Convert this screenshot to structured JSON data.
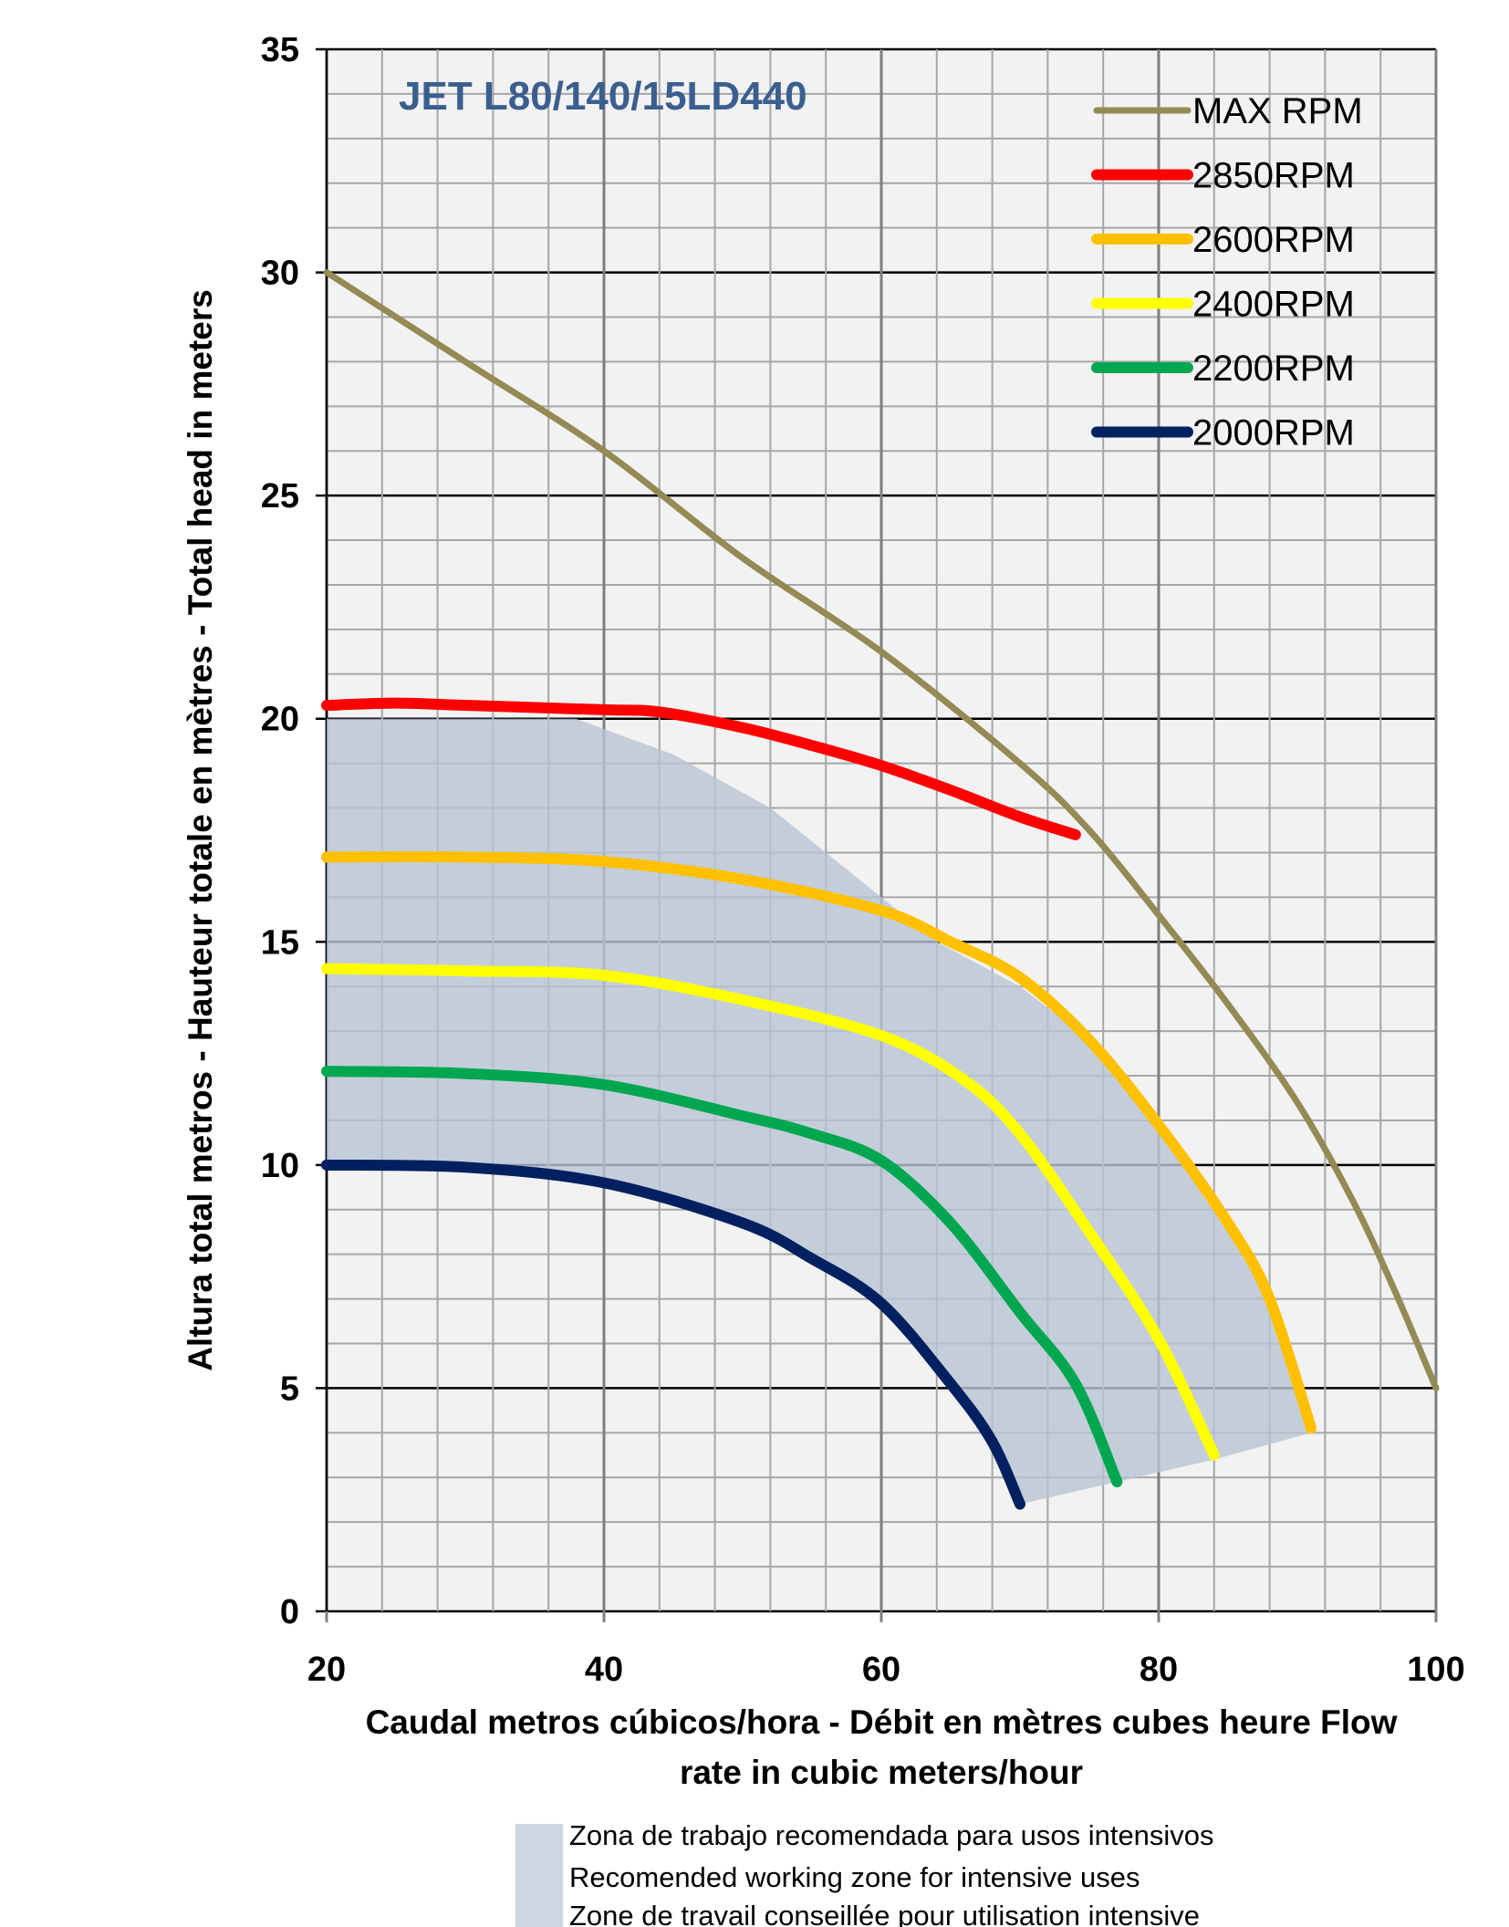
{
  "chart_data": {
    "type": "line",
    "title": "JET L80/140/15LD440",
    "xlabel": "Caudal metros cúbicos/hora - Débit en mètres cubes heure  Flow rate in cubic meters/hour",
    "xlabel_lines": [
      "Caudal metros cúbicos/hora - Débit en mètres cubes heure  Flow",
      "rate in cubic meters/hour"
    ],
    "ylabel": "Altura total metros - Hauteur totale en mètres - Total head in meters",
    "xlim": [
      20,
      100
    ],
    "ylim": [
      0,
      35
    ],
    "xticks": [
      20,
      40,
      60,
      80,
      100
    ],
    "yticks": [
      0,
      5,
      10,
      15,
      20,
      25,
      30,
      35
    ],
    "grid": true,
    "legend_placement": "top-right",
    "series": [
      {
        "name": "MAX RPM",
        "color": "#948a54",
        "points": [
          [
            20,
            30
          ],
          [
            30,
            28
          ],
          [
            40,
            26
          ],
          [
            50,
            23.6
          ],
          [
            60,
            21.5
          ],
          [
            70,
            19
          ],
          [
            75,
            17.5
          ],
          [
            80,
            15.6
          ],
          [
            85,
            13.6
          ],
          [
            90,
            11.4
          ],
          [
            94,
            9.2
          ],
          [
            97,
            7.2
          ],
          [
            100,
            5
          ]
        ]
      },
      {
        "name": "2850RPM",
        "color": "#ff0000",
        "points": [
          [
            20,
            20.3
          ],
          [
            25,
            20.35
          ],
          [
            30,
            20.3
          ],
          [
            40,
            20.2
          ],
          [
            44,
            20.15
          ],
          [
            50,
            19.8
          ],
          [
            55,
            19.4
          ],
          [
            60,
            18.95
          ],
          [
            65,
            18.4
          ],
          [
            70,
            17.8
          ],
          [
            74,
            17.4
          ]
        ]
      },
      {
        "name": "2600RPM",
        "color": "#ffc000",
        "points": [
          [
            20,
            16.9
          ],
          [
            30,
            16.9
          ],
          [
            40,
            16.8
          ],
          [
            50,
            16.4
          ],
          [
            60,
            15.7
          ],
          [
            65,
            15
          ],
          [
            70,
            14.2
          ],
          [
            75,
            12.8
          ],
          [
            80,
            10.9
          ],
          [
            85,
            8.7
          ],
          [
            88,
            7
          ],
          [
            91,
            4.1
          ]
        ]
      },
      {
        "name": "2400RPM",
        "color": "#ffff00",
        "points": [
          [
            20,
            14.4
          ],
          [
            30,
            14.35
          ],
          [
            40,
            14.25
          ],
          [
            50,
            13.7
          ],
          [
            60,
            12.9
          ],
          [
            66,
            11.9
          ],
          [
            70,
            10.7
          ],
          [
            75,
            8.5
          ],
          [
            80,
            6.1
          ],
          [
            84,
            3.5
          ]
        ]
      },
      {
        "name": "2200RPM",
        "color": "#00a650",
        "points": [
          [
            20,
            12.1
          ],
          [
            30,
            12.05
          ],
          [
            40,
            11.8
          ],
          [
            50,
            11.1
          ],
          [
            55,
            10.7
          ],
          [
            60,
            10.1
          ],
          [
            65,
            8.7
          ],
          [
            70,
            6.7
          ],
          [
            74,
            5.1
          ],
          [
            77,
            2.9
          ]
        ]
      },
      {
        "name": "2000RPM",
        "color": "#002060",
        "points": [
          [
            20,
            10
          ],
          [
            30,
            9.95
          ],
          [
            40,
            9.6
          ],
          [
            50,
            8.7
          ],
          [
            55,
            7.9
          ],
          [
            60,
            6.9
          ],
          [
            65,
            5.1
          ],
          [
            68,
            3.8
          ],
          [
            70,
            2.4
          ]
        ]
      }
    ],
    "zone": {
      "color": "#b8c4d3",
      "points": [
        [
          20,
          20
        ],
        [
          38,
          20
        ],
        [
          45,
          19.2
        ],
        [
          52,
          18
        ],
        [
          58,
          16.5
        ],
        [
          64,
          15
        ],
        [
          70,
          14
        ],
        [
          75,
          12.8
        ],
        [
          80,
          10.8
        ],
        [
          85,
          8.5
        ],
        [
          89,
          6.5
        ],
        [
          91,
          4
        ],
        [
          84,
          3.4
        ],
        [
          77,
          2.9
        ],
        [
          70,
          2.4
        ],
        [
          68,
          3.8
        ],
        [
          65,
          5.1
        ],
        [
          60,
          6.9
        ],
        [
          55,
          7.9
        ],
        [
          50,
          8.7
        ],
        [
          40,
          9.6
        ],
        [
          30,
          9.95
        ],
        [
          20,
          10
        ]
      ],
      "legend": [
        "Zona de trabajo recomendada para usos intensivos",
        "Recomended working zone for intensive uses",
        "Zone de travail conseillée pour utilisation intensive"
      ]
    }
  }
}
